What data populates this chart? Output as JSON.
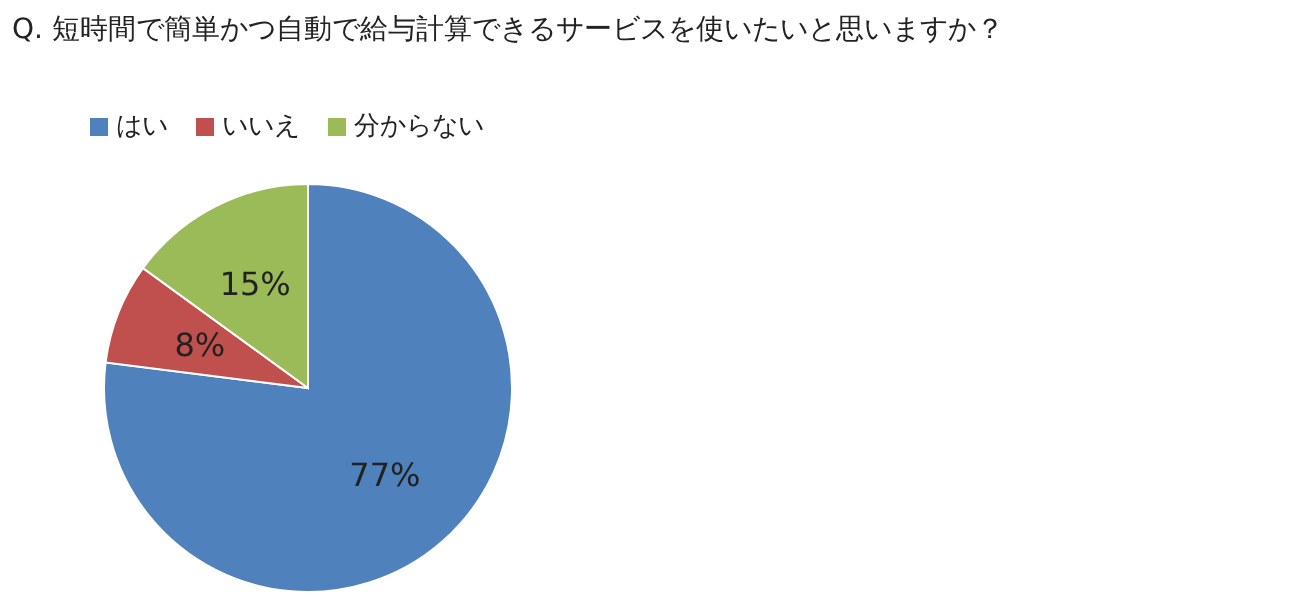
{
  "chart_data": {
    "type": "pie",
    "title": "Q.  短時間で簡単かつ自動で給与計算できるサービスを使いたいと思いますか？",
    "categories": [
      "はい",
      "いいえ",
      "分からない"
    ],
    "values": [
      77,
      8,
      15
    ],
    "colors": [
      "#4f81bd",
      "#c0504d",
      "#9bbb59"
    ],
    "value_labels": [
      "77%",
      "8%",
      "15%"
    ],
    "legend": "top left"
  }
}
